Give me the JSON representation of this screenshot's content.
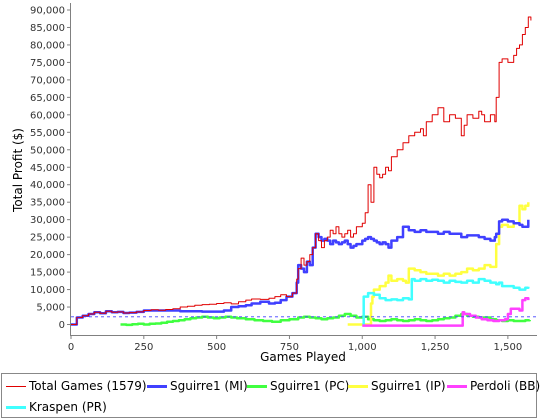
{
  "chart_data": {
    "type": "line",
    "xlabel": "Games Played",
    "ylabel": "Total Profit ($)",
    "xlim": [
      0,
      1600
    ],
    "ylim": [
      -3000,
      92000
    ],
    "xticks": [
      "0",
      "250",
      "500",
      "750",
      "1,000",
      "1,250",
      "1,500"
    ],
    "xtick_values": [
      0,
      250,
      500,
      750,
      1000,
      1250,
      1500
    ],
    "yticks": [
      "0",
      "5,000",
      "10,000",
      "15,000",
      "20,000",
      "25,000",
      "30,000",
      "35,000",
      "40,000",
      "45,000",
      "50,000",
      "55,000",
      "60,000",
      "65,000",
      "70,000",
      "75,000",
      "80,000",
      "85,000",
      "90,000"
    ],
    "ytick_values": [
      0,
      5000,
      10000,
      15000,
      20000,
      25000,
      30000,
      35000,
      40000,
      45000,
      50000,
      55000,
      60000,
      65000,
      70000,
      75000,
      80000,
      85000,
      90000
    ],
    "grid": false,
    "legend_position": "bottom",
    "series": [
      {
        "name": "Total Games (1579)",
        "color": "#e00000",
        "width": 1,
        "x": [
          0,
          20,
          40,
          60,
          80,
          100,
          120,
          140,
          160,
          180,
          200,
          225,
          250,
          275,
          300,
          325,
          350,
          375,
          400,
          425,
          450,
          475,
          500,
          525,
          550,
          575,
          600,
          620,
          650,
          680,
          700,
          720,
          740,
          760,
          775,
          780,
          790,
          800,
          810,
          820,
          830,
          840,
          850,
          860,
          870,
          880,
          890,
          900,
          910,
          920,
          930,
          940,
          950,
          960,
          970,
          980,
          990,
          1000,
          1010,
          1020,
          1030,
          1040,
          1050,
          1060,
          1070,
          1080,
          1090,
          1100,
          1120,
          1140,
          1160,
          1180,
          1200,
          1210,
          1220,
          1240,
          1260,
          1280,
          1300,
          1320,
          1340,
          1350,
          1360,
          1380,
          1400,
          1410,
          1420,
          1440,
          1455,
          1460,
          1470,
          1480,
          1500,
          1520,
          1530,
          1540,
          1550,
          1560,
          1570,
          1579
        ],
        "y": [
          0,
          2000,
          2500,
          3000,
          3500,
          3200,
          3800,
          3500,
          3600,
          3300,
          3400,
          3600,
          4000,
          4200,
          4100,
          4300,
          4500,
          5000,
          5200,
          5500,
          5700,
          5800,
          6000,
          6200,
          5900,
          6500,
          7000,
          7300,
          7200,
          7500,
          8000,
          8500,
          8000,
          9000,
          13000,
          16000,
          19000,
          17000,
          18000,
          20000,
          22000,
          26000,
          24000,
          22000,
          24000,
          25000,
          27000,
          26000,
          28000,
          26000,
          25000,
          26000,
          27000,
          25000,
          26000,
          28000,
          28000,
          29000,
          32000,
          40000,
          35000,
          45000,
          43000,
          42000,
          43000,
          45000,
          44000,
          48000,
          50000,
          52000,
          54000,
          55000,
          56000,
          54000,
          58000,
          60000,
          62000,
          58000,
          60000,
          59000,
          54000,
          57000,
          60000,
          59000,
          61000,
          60000,
          58000,
          60000,
          58000,
          65000,
          75000,
          76000,
          75000,
          77000,
          79000,
          80000,
          83000,
          85000,
          88000,
          87000
        ]
      },
      {
        "name": "Sguirre1 (MI)",
        "color": "#4040ff",
        "width": 2.5,
        "x": [
          0,
          20,
          40,
          60,
          80,
          100,
          120,
          140,
          160,
          180,
          200,
          225,
          250,
          275,
          300,
          325,
          350,
          375,
          400,
          425,
          450,
          475,
          500,
          525,
          550,
          575,
          600,
          620,
          650,
          680,
          700,
          720,
          740,
          760,
          775,
          780,
          790,
          800,
          810,
          820,
          830,
          840,
          850,
          860,
          870,
          880,
          890,
          900,
          910,
          920,
          930,
          940,
          950,
          960,
          970,
          980,
          990,
          1000,
          1010,
          1020,
          1030,
          1040,
          1050,
          1060,
          1070,
          1080,
          1090,
          1100,
          1120,
          1140,
          1160,
          1180,
          1200,
          1220,
          1240,
          1260,
          1280,
          1300,
          1320,
          1340,
          1360,
          1380,
          1400,
          1420,
          1440,
          1455,
          1460,
          1470,
          1480,
          1500,
          1520,
          1540,
          1550,
          1560,
          1570
        ],
        "y": [
          0,
          2000,
          2500,
          3000,
          3500,
          3200,
          3800,
          3500,
          3600,
          3300,
          3400,
          3600,
          4000,
          4000,
          4000,
          4000,
          4000,
          3800,
          3800,
          3800,
          3700,
          3700,
          3700,
          4000,
          5000,
          5200,
          5500,
          6000,
          6500,
          6000,
          6200,
          7000,
          8000,
          9000,
          12000,
          17000,
          16000,
          15000,
          18000,
          17000,
          22000,
          26000,
          25000,
          24000,
          24500,
          24000,
          23000,
          24000,
          23500,
          23000,
          23500,
          24000,
          23000,
          22000,
          22500,
          23000,
          23000,
          24000,
          24500,
          25000,
          24500,
          24000,
          23500,
          23000,
          23500,
          23000,
          22000,
          24000,
          25000,
          28000,
          27000,
          26500,
          27000,
          26500,
          26500,
          26000,
          26500,
          26000,
          26000,
          25000,
          25500,
          25500,
          25000,
          24500,
          24000,
          25000,
          26000,
          29500,
          30000,
          29500,
          29000,
          28500,
          28000,
          28000,
          30000
        ]
      },
      {
        "name": "Sguirre1 (PC)",
        "color": "#40ff40",
        "width": 2.5,
        "x": [
          170,
          190,
          210,
          230,
          250,
          270,
          290,
          310,
          330,
          350,
          370,
          390,
          410,
          430,
          450,
          470,
          490,
          510,
          530,
          550,
          570,
          600,
          630,
          660,
          690,
          720,
          750,
          780,
          800,
          820,
          840,
          860,
          880,
          900,
          920,
          940,
          960,
          980,
          1000,
          1020,
          1040,
          1060,
          1080,
          1100,
          1120,
          1140,
          1160,
          1180,
          1200,
          1220,
          1240,
          1260,
          1280,
          1300,
          1320,
          1340,
          1360,
          1380,
          1400,
          1420,
          1440,
          1460,
          1480,
          1500,
          1520,
          1540,
          1560,
          1575
        ],
        "y": [
          0,
          -100,
          100,
          200,
          0,
          200,
          300,
          500,
          800,
          1000,
          1200,
          1500,
          1800,
          2000,
          2200,
          2000,
          1800,
          2000,
          2200,
          2000,
          1800,
          1500,
          1200,
          1000,
          800,
          1200,
          1500,
          2000,
          2200,
          2000,
          1800,
          1500,
          1800,
          2000,
          2500,
          3000,
          2500,
          2000,
          2200,
          1500,
          1200,
          1000,
          1200,
          1500,
          1200,
          1000,
          1200,
          1500,
          1200,
          1000,
          1200,
          1500,
          1800,
          2000,
          2500,
          3000,
          2500,
          2200,
          2000,
          2000,
          1500,
          1200,
          1000,
          1200,
          1000,
          1000,
          1200,
          1300
        ]
      },
      {
        "name": "Sguirre1 (IP)",
        "color": "#ffff40",
        "width": 2.5,
        "x": [
          950,
          960,
          980,
          1000,
          1010,
          1020,
          1030,
          1035,
          1040,
          1060,
          1080,
          1090,
          1100,
          1120,
          1140,
          1150,
          1160,
          1180,
          1200,
          1220,
          1240,
          1260,
          1280,
          1300,
          1320,
          1340,
          1360,
          1380,
          1400,
          1420,
          1440,
          1460,
          1470,
          1480,
          1500,
          1520,
          1540,
          1550,
          1560,
          1570
        ],
        "y": [
          0,
          0,
          0,
          0,
          0,
          0,
          6000,
          8000,
          10000,
          11000,
          12000,
          14000,
          12500,
          13000,
          12500,
          12000,
          16000,
          15500,
          15000,
          14500,
          14500,
          14000,
          14500,
          14000,
          14500,
          15000,
          16000,
          15500,
          16000,
          17000,
          16500,
          23000,
          28000,
          28500,
          28000,
          29000,
          34000,
          33000,
          34000,
          35000
        ]
      },
      {
        "name": "Perdoli (BB)",
        "color": "#ff40ff",
        "width": 2.5,
        "x": [
          1000,
          1050,
          1100,
          1150,
          1200,
          1250,
          1300,
          1340,
          1345,
          1350,
          1370,
          1390,
          1410,
          1430,
          1450,
          1470,
          1490,
          1500,
          1510,
          1520,
          1540,
          1550,
          1560,
          1570
        ],
        "y": [
          -300,
          -300,
          -300,
          -300,
          -300,
          -300,
          -300,
          -300,
          3500,
          3000,
          2500,
          2000,
          1500,
          1200,
          1000,
          1200,
          1500,
          3000,
          4500,
          4500,
          4000,
          7000,
          7500,
          7000
        ]
      },
      {
        "name": "Kraspen (PR)",
        "color": "#40ffff",
        "width": 2.5,
        "x": [
          1000,
          1005,
          1020,
          1040,
          1060,
          1080,
          1100,
          1120,
          1140,
          1160,
          1170,
          1180,
          1200,
          1220,
          1240,
          1260,
          1280,
          1300,
          1320,
          1340,
          1360,
          1380,
          1400,
          1420,
          1440,
          1460,
          1470,
          1480,
          1500,
          1520,
          1540,
          1560,
          1570
        ],
        "y": [
          0,
          8000,
          9000,
          8500,
          7500,
          7000,
          7200,
          7000,
          7500,
          7200,
          13000,
          12500,
          13000,
          12500,
          12800,
          12500,
          12000,
          12500,
          12200,
          12000,
          12500,
          12000,
          13000,
          12500,
          12000,
          11500,
          12000,
          11000,
          11000,
          10500,
          10000,
          10500,
          10800
        ]
      }
    ]
  }
}
